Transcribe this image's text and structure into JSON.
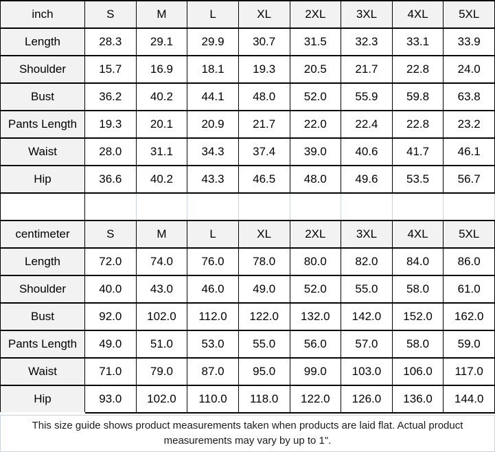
{
  "chart_data": [
    {
      "type": "table",
      "unit": "inch",
      "columns": [
        "S",
        "M",
        "L",
        "XL",
        "2XL",
        "3XL",
        "4XL",
        "5XL"
      ],
      "rows": [
        {
          "label": "Length",
          "values": [
            "28.3",
            "29.1",
            "29.9",
            "30.7",
            "31.5",
            "32.3",
            "33.1",
            "33.9"
          ]
        },
        {
          "label": "Shoulder",
          "values": [
            "15.7",
            "16.9",
            "18.1",
            "19.3",
            "20.5",
            "21.7",
            "22.8",
            "24.0"
          ]
        },
        {
          "label": "Bust",
          "values": [
            "36.2",
            "40.2",
            "44.1",
            "48.0",
            "52.0",
            "55.9",
            "59.8",
            "63.8"
          ]
        },
        {
          "label": "Pants Length",
          "values": [
            "19.3",
            "20.1",
            "20.9",
            "21.7",
            "22.0",
            "22.4",
            "22.8",
            "23.2"
          ]
        },
        {
          "label": "Waist",
          "values": [
            "28.0",
            "31.1",
            "34.3",
            "37.4",
            "39.0",
            "40.6",
            "41.7",
            "46.1"
          ]
        },
        {
          "label": "Hip",
          "values": [
            "36.6",
            "40.2",
            "43.3",
            "46.5",
            "48.0",
            "49.6",
            "53.5",
            "56.7"
          ]
        }
      ]
    },
    {
      "type": "table",
      "unit": "centimeter",
      "columns": [
        "S",
        "M",
        "L",
        "XL",
        "2XL",
        "3XL",
        "4XL",
        "5XL"
      ],
      "rows": [
        {
          "label": "Length",
          "values": [
            "72.0",
            "74.0",
            "76.0",
            "78.0",
            "80.0",
            "82.0",
            "84.0",
            "86.0"
          ]
        },
        {
          "label": "Shoulder",
          "values": [
            "40.0",
            "43.0",
            "46.0",
            "49.0",
            "52.0",
            "55.0",
            "58.0",
            "61.0"
          ]
        },
        {
          "label": "Bust",
          "values": [
            "92.0",
            "102.0",
            "112.0",
            "122.0",
            "132.0",
            "142.0",
            "152.0",
            "162.0"
          ]
        },
        {
          "label": "Pants Length",
          "values": [
            "49.0",
            "51.0",
            "53.0",
            "55.0",
            "56.0",
            "57.0",
            "58.0",
            "59.0"
          ]
        },
        {
          "label": "Waist",
          "values": [
            "71.0",
            "79.0",
            "87.0",
            "95.0",
            "99.0",
            "103.0",
            "106.0",
            "117.0"
          ]
        },
        {
          "label": "Hip",
          "values": [
            "93.0",
            "102.0",
            "110.0",
            "118.0",
            "122.0",
            "126.0",
            "136.0",
            "144.0"
          ]
        }
      ]
    }
  ],
  "footer": {
    "text": "This size guide shows product measurements taken when products are laid flat. Actual product measurements may vary by up to 1\"."
  },
  "colors": {
    "header_bg": "#f2f2f2",
    "grid_black": "#000000",
    "grid_light_blue": "#c8d3e2",
    "text": "#000000"
  }
}
